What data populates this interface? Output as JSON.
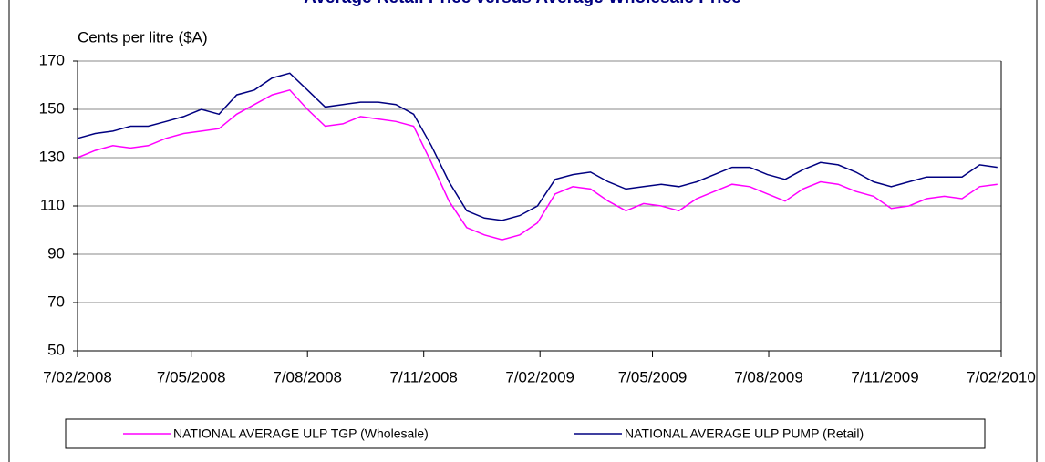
{
  "chart_data": {
    "type": "line",
    "title": "Average Retail Price versus Average Wholesale Price",
    "y_label": "Cents per litre ($A)",
    "x": [
      "7/02/2008",
      "21/02/2008",
      "6/03/2008",
      "20/03/2008",
      "3/04/2008",
      "17/04/2008",
      "1/05/2008",
      "15/05/2008",
      "29/05/2008",
      "12/06/2008",
      "26/06/2008",
      "10/07/2008",
      "24/07/2008",
      "7/08/2008",
      "21/08/2008",
      "4/09/2008",
      "18/09/2008",
      "2/10/2008",
      "16/10/2008",
      "30/10/2008",
      "13/11/2008",
      "27/11/2008",
      "11/12/2008",
      "25/12/2008",
      "8/01/2009",
      "22/01/2009",
      "5/02/2009",
      "19/02/2009",
      "5/03/2009",
      "19/03/2009",
      "2/04/2009",
      "16/04/2009",
      "30/04/2009",
      "14/05/2009",
      "28/05/2009",
      "11/06/2009",
      "25/06/2009",
      "9/07/2009",
      "23/07/2009",
      "6/08/2009",
      "20/08/2009",
      "3/09/2009",
      "17/09/2009",
      "1/10/2009",
      "15/10/2009",
      "29/10/2009",
      "12/11/2009",
      "26/11/2009",
      "10/12/2009",
      "24/12/2009",
      "7/01/2010",
      "21/01/2010",
      "4/02/2010"
    ],
    "series": [
      {
        "name": "NATIONAL AVERAGE ULP TGP (Wholesale)",
        "color": "#ff00ff",
        "values": [
          130,
          133,
          135,
          134,
          135,
          138,
          140,
          141,
          142,
          148,
          152,
          156,
          158,
          150,
          143,
          144,
          147,
          146,
          145,
          143,
          128,
          112,
          101,
          98,
          96,
          98,
          103,
          115,
          118,
          117,
          112,
          108,
          111,
          110,
          108,
          113,
          116,
          119,
          118,
          115,
          112,
          117,
          120,
          119,
          116,
          114,
          109,
          110,
          113,
          114,
          113,
          118,
          119
        ]
      },
      {
        "name": "NATIONAL AVERAGE ULP PUMP (Retail)",
        "color": "#000080",
        "values": [
          138,
          140,
          141,
          143,
          143,
          145,
          147,
          150,
          148,
          156,
          158,
          163,
          165,
          158,
          151,
          152,
          153,
          153,
          152,
          148,
          135,
          120,
          108,
          105,
          104,
          106,
          110,
          121,
          123,
          124,
          120,
          117,
          118,
          119,
          118,
          120,
          123,
          126,
          126,
          123,
          121,
          125,
          128,
          127,
          124,
          120,
          118,
          120,
          122,
          122,
          122,
          127,
          126
        ]
      }
    ],
    "xlim": [
      "7/02/2008",
      "7/02/2010"
    ],
    "xticks": [
      "7/02/2008",
      "7/05/2008",
      "7/08/2008",
      "7/11/2008",
      "7/02/2009",
      "7/05/2009",
      "7/08/2009",
      "7/11/2009",
      "7/02/2010"
    ],
    "ylim": [
      50,
      170
    ],
    "yticks": [
      50,
      70,
      90,
      110,
      130,
      150,
      170
    ],
    "grid": true,
    "legend": "bottom"
  }
}
